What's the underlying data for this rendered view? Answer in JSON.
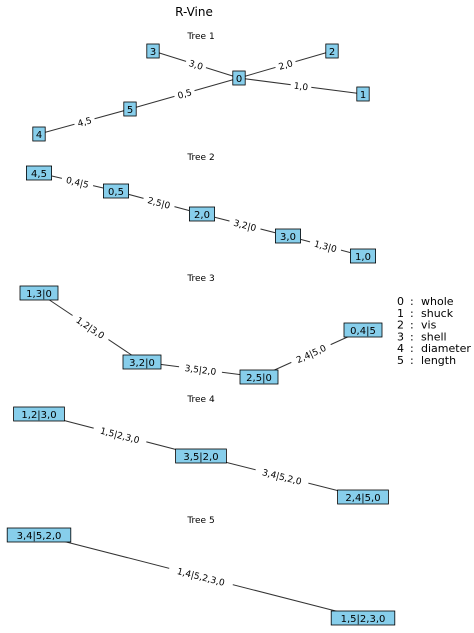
{
  "title": "R-Vine",
  "legend": [
    {
      "index": "0",
      "name": "whole"
    },
    {
      "index": "1",
      "name": "shuck"
    },
    {
      "index": "2",
      "name": "vis"
    },
    {
      "index": "3",
      "name": "shell"
    },
    {
      "index": "4",
      "name": "diameter"
    },
    {
      "index": "5",
      "name": "length"
    }
  ],
  "trees": [
    {
      "title": "Tree 1",
      "nodes": [
        {
          "id": "n3",
          "label": "3"
        },
        {
          "id": "n2",
          "label": "2"
        },
        {
          "id": "n0",
          "label": "0"
        },
        {
          "id": "n1",
          "label": "1"
        },
        {
          "id": "n5",
          "label": "5"
        },
        {
          "id": "n4",
          "label": "4"
        }
      ],
      "edges": [
        {
          "from": "n3",
          "to": "n0",
          "label": "3,0"
        },
        {
          "from": "n0",
          "to": "n2",
          "label": "2,0"
        },
        {
          "from": "n0",
          "to": "n1",
          "label": "1,0"
        },
        {
          "from": "n5",
          "to": "n0",
          "label": "0,5"
        },
        {
          "from": "n4",
          "to": "n5",
          "label": "4,5"
        }
      ]
    },
    {
      "title": "Tree 2",
      "nodes": [
        {
          "id": "t2a",
          "label": "4,5"
        },
        {
          "id": "t2b",
          "label": "0,5"
        },
        {
          "id": "t2c",
          "label": "2,0"
        },
        {
          "id": "t2d",
          "label": "3,0"
        },
        {
          "id": "t2e",
          "label": "1,0"
        }
      ],
      "edges": [
        {
          "from": "t2a",
          "to": "t2b",
          "label": "0,4|5"
        },
        {
          "from": "t2b",
          "to": "t2c",
          "label": "2,5|0"
        },
        {
          "from": "t2c",
          "to": "t2d",
          "label": "3,2|0"
        },
        {
          "from": "t2d",
          "to": "t2e",
          "label": "1,3|0"
        }
      ]
    },
    {
      "title": "Tree 3",
      "nodes": [
        {
          "id": "t3a",
          "label": "1,3|0"
        },
        {
          "id": "t3b",
          "label": "3,2|0"
        },
        {
          "id": "t3c",
          "label": "2,5|0"
        },
        {
          "id": "t3d",
          "label": "0,4|5"
        }
      ],
      "edges": [
        {
          "from": "t3a",
          "to": "t3b",
          "label": "1,2|3,0"
        },
        {
          "from": "t3b",
          "to": "t3c",
          "label": "3,5|2,0"
        },
        {
          "from": "t3c",
          "to": "t3d",
          "label": "2,4|5,0"
        }
      ]
    },
    {
      "title": "Tree 4",
      "nodes": [
        {
          "id": "t4a",
          "label": "1,2|3,0"
        },
        {
          "id": "t4b",
          "label": "3,5|2,0"
        },
        {
          "id": "t4c",
          "label": "2,4|5,0"
        }
      ],
      "edges": [
        {
          "from": "t4a",
          "to": "t4b",
          "label": "1,5|2,3,0"
        },
        {
          "from": "t4b",
          "to": "t4c",
          "label": "3,4|5,2,0"
        }
      ]
    },
    {
      "title": "Tree 5",
      "nodes": [
        {
          "id": "t5a",
          "label": "3,4|5,2,0"
        },
        {
          "id": "t5b",
          "label": "1,5|2,3,0"
        }
      ],
      "edges": [
        {
          "from": "t5a",
          "to": "t5b",
          "label": "1,4|5,2,3,0"
        }
      ]
    }
  ]
}
